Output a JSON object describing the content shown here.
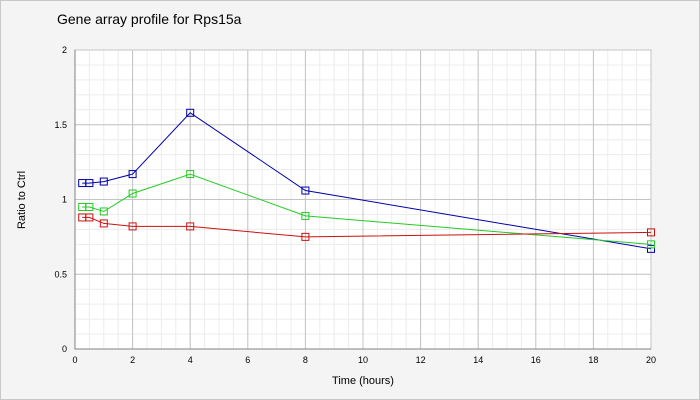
{
  "chart_data": {
    "type": "line",
    "title": "Gene array profile for Rps15a",
    "xlabel": "Time (hours)",
    "ylabel": "Ratio to Ctrl",
    "xlim": [
      0,
      20
    ],
    "ylim": [
      0,
      2
    ],
    "x_ticks": [
      "0",
      "2",
      "4",
      "6",
      "8",
      "10",
      "12",
      "14",
      "16",
      "18",
      "20"
    ],
    "y_ticks": [
      "0",
      "0.5",
      "1",
      "1.5",
      "2"
    ],
    "grid": true,
    "legend": "none",
    "series": [
      {
        "color": "#0000aa",
        "x": [
          0.25,
          0.5,
          1,
          2,
          4,
          8,
          20
        ],
        "y": [
          1.11,
          1.11,
          1.12,
          1.17,
          1.58,
          1.06,
          0.67
        ]
      },
      {
        "color": "#22cc22",
        "x": [
          0.25,
          0.5,
          1,
          2,
          4,
          8,
          20
        ],
        "y": [
          0.95,
          0.95,
          0.92,
          1.04,
          1.17,
          0.89,
          0.7
        ]
      },
      {
        "color": "#cc1111",
        "x": [
          0.25,
          0.5,
          1,
          2,
          4,
          8,
          20
        ],
        "y": [
          0.88,
          0.88,
          0.84,
          0.82,
          0.82,
          0.75,
          0.78
        ]
      }
    ]
  }
}
